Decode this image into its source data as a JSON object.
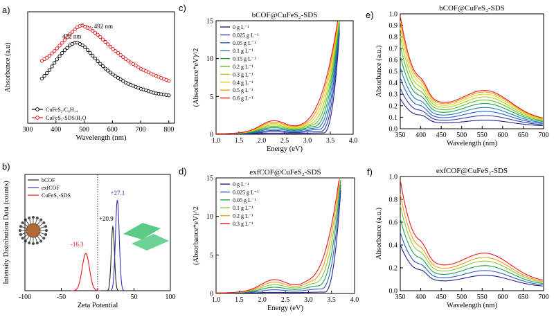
{
  "panels": {
    "a": {
      "label": "a)"
    },
    "b": {
      "label": "b)"
    },
    "c": {
      "label": "c)"
    },
    "d": {
      "label": "d)"
    },
    "e": {
      "label": "e)"
    },
    "f": {
      "label": "f)"
    }
  },
  "chart_data": [
    {
      "id": "a",
      "type": "line",
      "title": "",
      "xlabel": "Wavelength (nm)",
      "ylabel": "Absorbance (a.u)",
      "xlim": [
        300,
        820
      ],
      "ylim": [
        0,
        1
      ],
      "xticks": [
        300,
        400,
        500,
        600,
        700,
        800
      ],
      "yticks": [],
      "annotations": [
        {
          "text": "492 nm",
          "x": 492
        },
        {
          "text": "472 nm",
          "x": 472
        }
      ],
      "series": [
        {
          "name": "CuFeS₂/C₆H₁₄",
          "color": "#000000",
          "marker": "open-circle",
          "x": [
            350,
            375,
            400,
            425,
            450,
            472,
            500,
            525,
            550,
            575,
            600,
            650,
            700,
            750,
            800
          ],
          "y": [
            0.4,
            0.47,
            0.56,
            0.64,
            0.7,
            0.73,
            0.69,
            0.62,
            0.55,
            0.49,
            0.44,
            0.36,
            0.31,
            0.27,
            0.25
          ]
        },
        {
          "name": "CuFeS₂-SDS/H₂O",
          "color": "#e8141b",
          "marker": "open-circle",
          "x": [
            350,
            375,
            400,
            425,
            450,
            475,
            492,
            525,
            550,
            575,
            600,
            650,
            700,
            750,
            800
          ],
          "y": [
            0.56,
            0.6,
            0.66,
            0.73,
            0.8,
            0.86,
            0.88,
            0.84,
            0.79,
            0.73,
            0.67,
            0.57,
            0.49,
            0.43,
            0.38
          ]
        }
      ]
    },
    {
      "id": "b",
      "type": "line",
      "title": "",
      "xlabel": "Zeta Potential",
      "ylabel": "Intensity Distribution Data (counts)",
      "xlim": [
        -100,
        100
      ],
      "ylim": [
        0,
        1
      ],
      "xticks": [
        -100,
        -50,
        0,
        50,
        100
      ],
      "yticks": [],
      "annotations": [
        {
          "text": "+27.1",
          "x": 27.1
        },
        {
          "text": "+20.9",
          "x": 20.9
        },
        {
          "text": "-16.3",
          "x": -16.3
        }
      ],
      "series": [
        {
          "name": "bCOF",
          "color": "#222222",
          "center": 20.9,
          "peak": 0.55,
          "width": 2.2
        },
        {
          "name": "exfCOF",
          "color": "#3232b0",
          "center": 27.1,
          "peak": 0.78,
          "width": 2.6
        },
        {
          "name": "CuFeS₂-SDS",
          "color": "#e8141b",
          "center": -16.3,
          "peak": 0.32,
          "width": 5.0
        }
      ]
    },
    {
      "id": "c",
      "type": "line",
      "title": "bCOF@CuFeS₂-SDS",
      "xlabel": "Energy (eV)",
      "ylabel": "(Absorbance*eV)^2",
      "xlim": [
        1.0,
        4.0
      ],
      "ylim": [
        0,
        15
      ],
      "xticks": [
        1.0,
        1.5,
        2.0,
        2.5,
        3.0,
        3.5,
        4.0
      ],
      "yticks": [
        0,
        5,
        10,
        15
      ],
      "series": [
        {
          "name": "0 g L⁻¹",
          "color": "#1f1f8f"
        },
        {
          "name": "0.025 g L⁻¹",
          "color": "#2b3aa8"
        },
        {
          "name": "0.05 g L⁻¹",
          "color": "#2a5cc0"
        },
        {
          "name": "0.1 g L⁻¹",
          "color": "#1f7bbf"
        },
        {
          "name": "0.15 g L⁻¹",
          "color": "#1aa04c"
        },
        {
          "name": "0.2 g L⁻¹",
          "color": "#5cbf2a"
        },
        {
          "name": "0.3 g L⁻¹",
          "color": "#a8cf1e"
        },
        {
          "name": "0.4 g L⁻¹",
          "color": "#e5d51a"
        },
        {
          "name": "0.5 g L⁻¹",
          "color": "#f39c12"
        },
        {
          "name": "0.6 g L⁻¹",
          "color": "#e8141b"
        }
      ]
    },
    {
      "id": "d",
      "type": "line",
      "title": "exfCOF@CuFeS₂-SDS",
      "xlabel": "Energy (eV)",
      "ylabel": "(Absorbance*eV)^2",
      "xlim": [
        1.0,
        4.0
      ],
      "ylim": [
        0,
        15
      ],
      "xticks": [
        1.0,
        1.5,
        2.0,
        2.5,
        3.0,
        3.5,
        4.0
      ],
      "yticks": [
        0,
        5,
        10,
        15
      ],
      "series": [
        {
          "name": "0 g L⁻¹",
          "color": "#1f1f8f"
        },
        {
          "name": "0.025 g L⁻¹",
          "color": "#2a5cc0"
        },
        {
          "name": "0.05 g L⁻¹",
          "color": "#1aa04c"
        },
        {
          "name": "0.1 g L⁻¹",
          "color": "#8cc63f"
        },
        {
          "name": "0.2 g L⁻¹",
          "color": "#f39c12"
        },
        {
          "name": "0.3 g L⁻¹",
          "color": "#e8141b"
        }
      ]
    },
    {
      "id": "e",
      "type": "line",
      "title": "bCOF@CuFeS₂-SDS",
      "xlabel": "Wavelength (nm)",
      "ylabel": "Absorbance (a.u.)",
      "xlim": [
        350,
        700
      ],
      "ylim": [
        0,
        1.0
      ],
      "xticks": [
        350,
        400,
        450,
        500,
        550,
        600,
        650,
        700
      ],
      "yticks": [
        0.0,
        0.1,
        0.2,
        0.3,
        0.4,
        0.5,
        0.6,
        0.7,
        0.8,
        0.9,
        1.0
      ],
      "series": [
        {
          "name": "0 g L⁻¹",
          "color": "#1f1f8f",
          "scale": 0.45
        },
        {
          "name": "0.025 g L⁻¹",
          "color": "#2b3aa8",
          "scale": 0.55
        },
        {
          "name": "0.05 g L⁻¹",
          "color": "#2a5cc0",
          "scale": 0.64
        },
        {
          "name": "0.1 g L⁻¹",
          "color": "#1f7bbf",
          "scale": 0.72
        },
        {
          "name": "0.15 g L⁻¹",
          "color": "#1aa04c",
          "scale": 0.8
        },
        {
          "name": "0.2 g L⁻¹",
          "color": "#5cbf2a",
          "scale": 0.87
        },
        {
          "name": "0.3 g L⁻¹",
          "color": "#a8cf1e",
          "scale": 0.93
        },
        {
          "name": "0.4 g L⁻¹",
          "color": "#e5d51a",
          "scale": 0.98
        },
        {
          "name": "0.5 g L⁻¹",
          "color": "#f39c12",
          "scale": 1.02
        },
        {
          "name": "0.6 g L⁻¹",
          "color": "#e8141b",
          "scale": 1.05
        }
      ]
    },
    {
      "id": "f",
      "type": "line",
      "title": "exfCOF@CuFeS₂-SDS",
      "xlabel": "Wavelength (nm)",
      "ylabel": "Absorbance (a.u.)",
      "xlim": [
        350,
        700
      ],
      "ylim": [
        0,
        1.0
      ],
      "xticks": [
        350,
        400,
        450,
        500,
        550,
        600,
        650,
        700
      ],
      "yticks": [
        0.0,
        0.2,
        0.4,
        0.6,
        0.8,
        1.0
      ],
      "series": [
        {
          "name": "0 g L⁻¹",
          "color": "#1f1f8f",
          "scale": 0.6
        },
        {
          "name": "0.025 g L⁻¹",
          "color": "#2a5cc0",
          "scale": 0.7
        },
        {
          "name": "0.05 g L⁻¹",
          "color": "#1aa04c",
          "scale": 0.8
        },
        {
          "name": "0.1 g L⁻¹",
          "color": "#8cc63f",
          "scale": 0.89
        },
        {
          "name": "0.2 g L⁻¹",
          "color": "#f39c12",
          "scale": 0.96
        },
        {
          "name": "0.3 g L⁻¹",
          "color": "#e8141b",
          "scale": 1.04
        }
      ]
    }
  ]
}
